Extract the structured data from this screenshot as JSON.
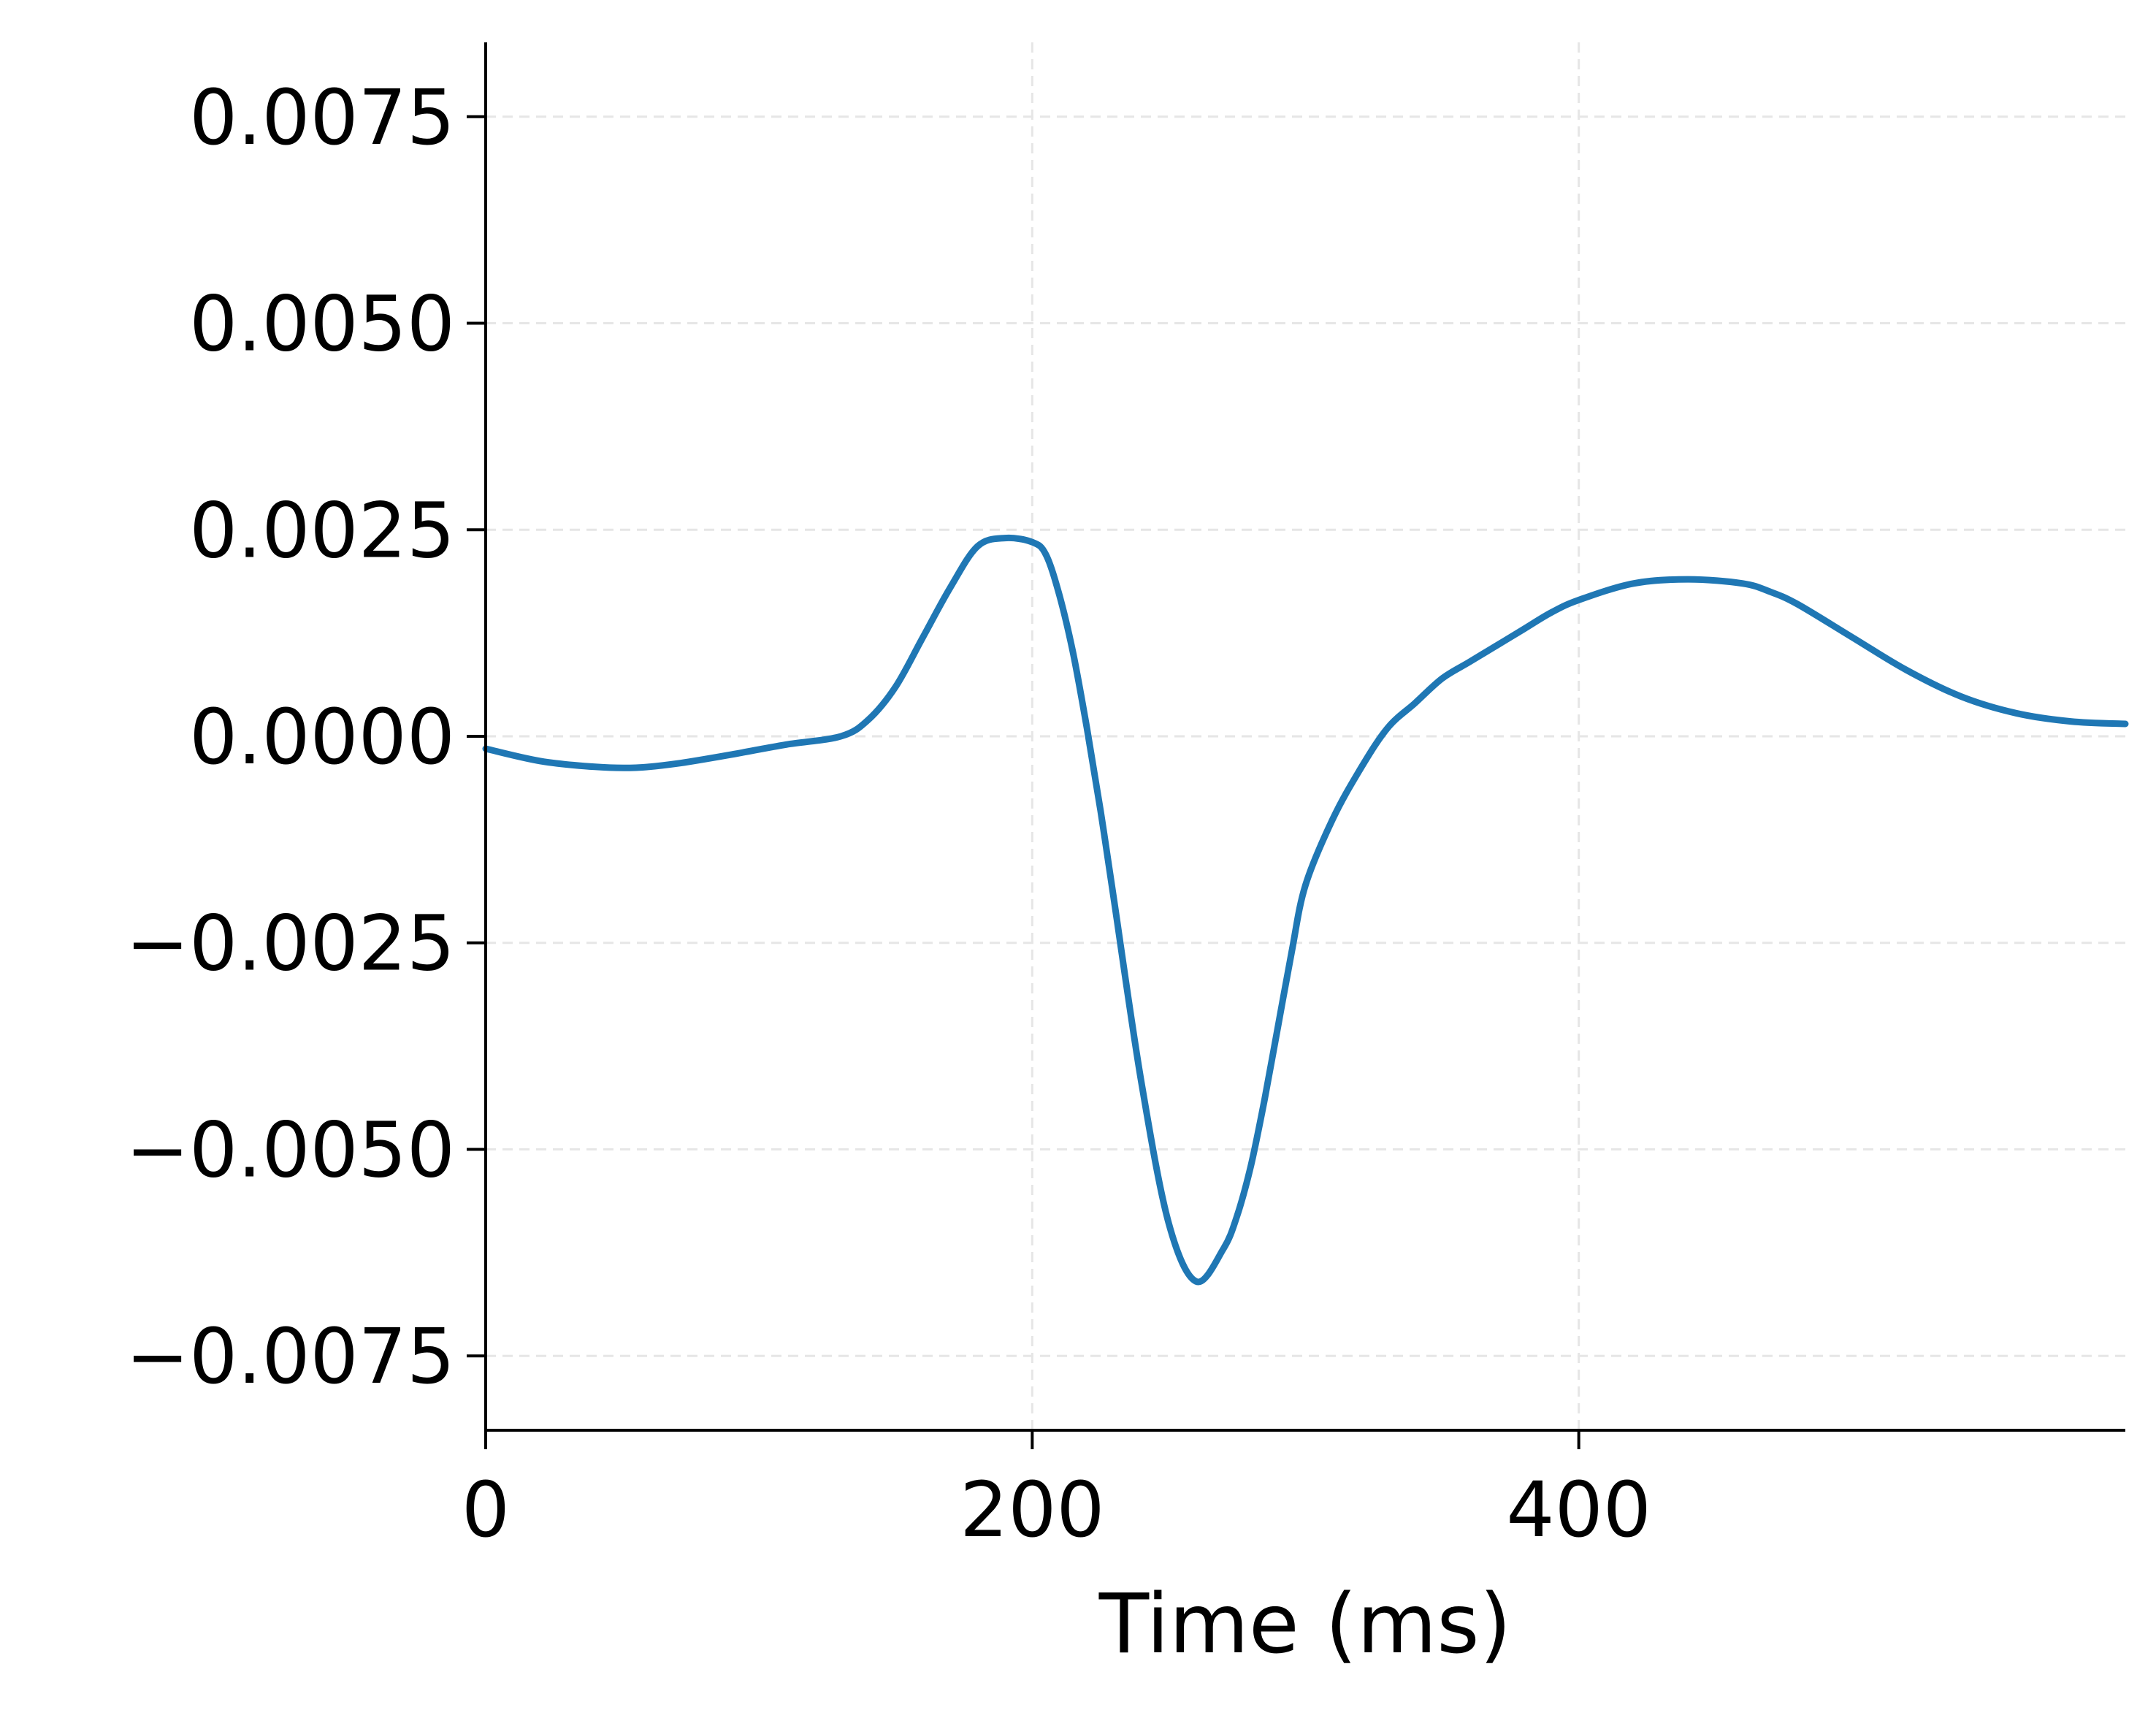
{
  "chart_data": {
    "type": "line",
    "xlabel": "Time (ms)",
    "ylabel": "",
    "title": "",
    "xlim": [
      0,
      600
    ],
    "ylim": [
      -0.0084,
      0.0084
    ],
    "grid": true,
    "xticks": [
      0,
      200,
      400
    ],
    "xtick_labels": [
      "0",
      "200",
      "400"
    ],
    "yticks": [
      0.0075,
      0.005,
      0.0025,
      0.0,
      -0.0025,
      -0.005,
      -0.0075
    ],
    "ytick_labels": [
      "0.0075",
      "0.0050",
      "0.0025",
      "0.0000",
      "−0.0025",
      "−0.0050",
      "−0.0075"
    ],
    "line_color": "#1f77b4",
    "series": [
      {
        "x": [
          0,
          20,
          40,
          55,
          70,
          90,
          110,
          130,
          140,
          150,
          160,
          170,
          180,
          190,
          200,
          205,
          210,
          215,
          220,
          225,
          230,
          240,
          250,
          260,
          270,
          275,
          280,
          285,
          290,
          295,
          300,
          310,
          320,
          330,
          340,
          350,
          360,
          370,
          380,
          390,
          400,
          420,
          440,
          460,
          470,
          480,
          500,
          520,
          540,
          560,
          580,
          600
        ],
        "y": [
          -0.00015,
          -0.0003,
          -0.00037,
          -0.00038,
          -0.00033,
          -0.00022,
          -0.0001,
          0.0,
          0.0002,
          0.0006,
          0.0012,
          0.0018,
          0.0023,
          0.0024,
          0.00235,
          0.0022,
          0.0017,
          0.001,
          0.0001,
          -0.0009,
          -0.002,
          -0.0042,
          -0.0059,
          -0.0066,
          -0.0062,
          -0.0058,
          -0.0052,
          -0.0044,
          -0.0035,
          -0.0026,
          -0.0018,
          -0.001,
          -0.0004,
          0.0001,
          0.0004,
          0.0007,
          0.0009,
          0.0011,
          0.0013,
          0.0015,
          0.00165,
          0.00185,
          0.0019,
          0.00185,
          0.00175,
          0.0016,
          0.0012,
          0.0008,
          0.00048,
          0.00028,
          0.00018,
          0.00015
        ]
      }
    ]
  }
}
